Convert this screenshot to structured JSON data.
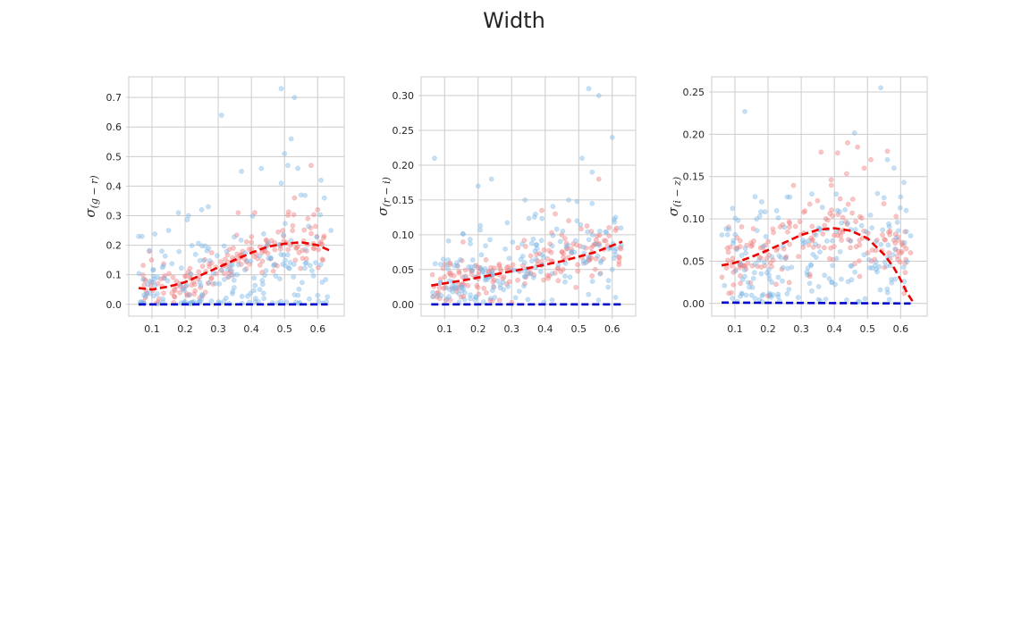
{
  "figure": {
    "title": "Width",
    "colors": {
      "red_points": "#f08080",
      "blue_points": "#7fb8e6",
      "red_curve": "#ee0000",
      "blue_curve": "#0000cc",
      "grid": "#cccccc",
      "frame": "#cccccc"
    }
  },
  "chart_data": [
    {
      "type": "scatter",
      "title": "",
      "ylabel": "σ",
      "ylabel_sub": "(g − r)",
      "xlim": [
        0.03,
        0.68
      ],
      "ylim": [
        -0.04,
        0.77
      ],
      "xticks": [
        0.1,
        0.2,
        0.3,
        0.4,
        0.5,
        0.6
      ],
      "yticks": [
        0.0,
        0.1,
        0.2,
        0.3,
        0.4,
        0.5,
        0.6,
        0.7
      ],
      "ytick_labels": [
        "0.0",
        "0.1",
        "0.2",
        "0.3",
        "0.4",
        "0.5",
        "0.6",
        "0.7"
      ],
      "grid": true,
      "series": [
        {
          "kind": "points",
          "color": "#f08080",
          "x_range": [
            0.06,
            0.62
          ],
          "trend": [
            [
              0.06,
              0.05
            ],
            [
              0.15,
              0.06
            ],
            [
              0.25,
              0.1
            ],
            [
              0.35,
              0.14
            ],
            [
              0.45,
              0.19
            ],
            [
              0.55,
              0.21
            ],
            [
              0.62,
              0.2
            ]
          ],
          "spread": 0.04,
          "count": 180,
          "seed": 11
        },
        {
          "kind": "points",
          "color": "#7fb8e6",
          "x_range": [
            0.06,
            0.63
          ],
          "trend": [
            [
              0.06,
              0.04
            ],
            [
              0.2,
              0.05
            ],
            [
              0.35,
              0.08
            ],
            [
              0.5,
              0.12
            ],
            [
              0.63,
              0.12
            ]
          ],
          "spread": 0.09,
          "count": 180,
          "seed": 23
        },
        {
          "kind": "points",
          "color": "#7fb8e6",
          "points": [
            [
              0.49,
              0.73
            ],
            [
              0.53,
              0.7
            ],
            [
              0.31,
              0.64
            ],
            [
              0.52,
              0.56
            ],
            [
              0.5,
              0.51
            ],
            [
              0.51,
              0.47
            ],
            [
              0.54,
              0.46
            ],
            [
              0.43,
              0.46
            ],
            [
              0.37,
              0.45
            ],
            [
              0.61,
              0.42
            ],
            [
              0.49,
              0.41
            ],
            [
              0.55,
              0.37
            ],
            [
              0.62,
              0.36
            ],
            [
              0.25,
              0.32
            ],
            [
              0.27,
              0.33
            ],
            [
              0.18,
              0.31
            ],
            [
              0.21,
              0.3
            ],
            [
              0.06,
              0.23
            ],
            [
              0.07,
              0.23
            ],
            [
              0.15,
              0.25
            ],
            [
              0.64,
              0.25
            ],
            [
              0.6,
              0.03
            ]
          ]
        },
        {
          "kind": "points",
          "color": "#f08080",
          "points": [
            [
              0.58,
              0.47
            ],
            [
              0.6,
              0.32
            ],
            [
              0.41,
              0.31
            ],
            [
              0.36,
              0.31
            ],
            [
              0.57,
              0.29
            ],
            [
              0.53,
              0.36
            ]
          ]
        },
        {
          "kind": "line",
          "style": "dashed",
          "color": "#ee0000",
          "x": [
            0.06,
            0.1,
            0.15,
            0.2,
            0.25,
            0.3,
            0.35,
            0.4,
            0.45,
            0.5,
            0.55,
            0.6,
            0.64
          ],
          "y": [
            0.055,
            0.05,
            0.06,
            0.075,
            0.1,
            0.125,
            0.15,
            0.175,
            0.195,
            0.205,
            0.21,
            0.2,
            0.18
          ]
        },
        {
          "kind": "line",
          "style": "dashed",
          "color": "#0000cc",
          "x": [
            0.06,
            0.63
          ],
          "y": [
            0.0,
            0.0
          ]
        }
      ]
    },
    {
      "type": "scatter",
      "title": "",
      "ylabel": "σ",
      "ylabel_sub": "(r − i)",
      "xlim": [
        0.03,
        0.67
      ],
      "ylim": [
        -0.017,
        0.327
      ],
      "xticks": [
        0.1,
        0.2,
        0.3,
        0.4,
        0.5,
        0.6
      ],
      "yticks": [
        0.0,
        0.05,
        0.1,
        0.15,
        0.2,
        0.25,
        0.3
      ],
      "ytick_labels": [
        "0.00",
        "0.05",
        "0.10",
        "0.15",
        "0.20",
        "0.25",
        "0.30"
      ],
      "grid": true,
      "series": [
        {
          "kind": "points",
          "color": "#f08080",
          "x_range": [
            0.06,
            0.63
          ],
          "trend": [
            [
              0.06,
              0.03
            ],
            [
              0.2,
              0.04
            ],
            [
              0.35,
              0.05
            ],
            [
              0.5,
              0.07
            ],
            [
              0.63,
              0.085
            ]
          ],
          "spread": 0.018,
          "count": 180,
          "seed": 37
        },
        {
          "kind": "points",
          "color": "#7fb8e6",
          "x_range": [
            0.06,
            0.63
          ],
          "trend": [
            [
              0.06,
              0.03
            ],
            [
              0.2,
              0.04
            ],
            [
              0.35,
              0.055
            ],
            [
              0.5,
              0.07
            ],
            [
              0.63,
              0.08
            ]
          ],
          "spread": 0.035,
          "count": 180,
          "seed": 53
        },
        {
          "kind": "points",
          "color": "#7fb8e6",
          "points": [
            [
              0.53,
              0.31
            ],
            [
              0.56,
              0.3
            ],
            [
              0.6,
              0.24
            ],
            [
              0.07,
              0.21
            ],
            [
              0.51,
              0.21
            ],
            [
              0.54,
              0.19
            ],
            [
              0.24,
              0.18
            ],
            [
              0.2,
              0.17
            ],
            [
              0.47,
              0.15
            ],
            [
              0.34,
              0.15
            ],
            [
              0.54,
              0.145
            ],
            [
              0.61,
              0.125
            ],
            [
              0.61,
              0.01
            ],
            [
              0.6,
              0.05
            ]
          ]
        },
        {
          "kind": "points",
          "color": "#f08080",
          "points": [
            [
              0.56,
              0.18
            ],
            [
              0.39,
              0.135
            ],
            [
              0.43,
              0.13
            ],
            [
              0.47,
              0.12
            ],
            [
              0.62,
              0.057
            ]
          ]
        },
        {
          "kind": "line",
          "style": "dashed",
          "color": "#ee0000",
          "x": [
            0.06,
            0.15,
            0.25,
            0.35,
            0.45,
            0.55,
            0.63
          ],
          "y": [
            0.027,
            0.034,
            0.043,
            0.052,
            0.062,
            0.075,
            0.09
          ]
        },
        {
          "kind": "line",
          "style": "dashed",
          "color": "#0000cc",
          "x": [
            0.06,
            0.63
          ],
          "y": [
            0.0,
            0.0
          ]
        }
      ]
    },
    {
      "type": "scatter",
      "title": "",
      "ylabel": "σ",
      "ylabel_sub": "(i − z)",
      "xlim": [
        0.03,
        0.68
      ],
      "ylim": [
        -0.015,
        0.268
      ],
      "xticks": [
        0.1,
        0.2,
        0.3,
        0.4,
        0.5,
        0.6
      ],
      "yticks": [
        0.0,
        0.05,
        0.1,
        0.15,
        0.2,
        0.25
      ],
      "ytick_labels": [
        "0.00",
        "0.05",
        "0.10",
        "0.15",
        "0.20",
        "0.25"
      ],
      "grid": true,
      "series": [
        {
          "kind": "points",
          "color": "#f08080",
          "x_range": [
            0.06,
            0.62
          ],
          "trend": [
            [
              0.06,
              0.05
            ],
            [
              0.15,
              0.055
            ],
            [
              0.25,
              0.07
            ],
            [
              0.35,
              0.085
            ],
            [
              0.45,
              0.085
            ],
            [
              0.55,
              0.07
            ],
            [
              0.62,
              0.05
            ]
          ],
          "spread": 0.025,
          "count": 180,
          "seed": 71
        },
        {
          "kind": "points",
          "color": "#7fb8e6",
          "x_range": [
            0.06,
            0.62
          ],
          "trend": [
            [
              0.06,
              0.04
            ],
            [
              0.2,
              0.05
            ],
            [
              0.35,
              0.06
            ],
            [
              0.5,
              0.06
            ],
            [
              0.62,
              0.05
            ]
          ],
          "spread": 0.04,
          "count": 180,
          "seed": 89
        },
        {
          "kind": "points",
          "color": "#7fb8e6",
          "points": [
            [
              0.54,
              0.255
            ],
            [
              0.13,
              0.227
            ],
            [
              0.56,
              0.17
            ],
            [
              0.58,
              0.16
            ],
            [
              0.61,
              0.143
            ],
            [
              0.6,
              0.126
            ],
            [
              0.53,
              0.13
            ],
            [
              0.55,
              0.125
            ],
            [
              0.63,
              0.08
            ],
            [
              0.59,
              0.096
            ]
          ]
        },
        {
          "kind": "points",
          "color": "#f08080",
          "points": [
            [
              0.44,
              0.19
            ],
            [
              0.47,
              0.185
            ],
            [
              0.56,
              0.18
            ],
            [
              0.41,
              0.178
            ],
            [
              0.36,
              0.179
            ],
            [
              0.51,
              0.17
            ],
            [
              0.49,
              0.16
            ],
            [
              0.63,
              0.06
            ]
          ]
        },
        {
          "kind": "line",
          "style": "dashed",
          "color": "#ee0000",
          "x": [
            0.06,
            0.1,
            0.15,
            0.2,
            0.25,
            0.3,
            0.35,
            0.4,
            0.45,
            0.5,
            0.55,
            0.58,
            0.6,
            0.62,
            0.64
          ],
          "y": [
            0.045,
            0.048,
            0.055,
            0.063,
            0.072,
            0.081,
            0.087,
            0.089,
            0.086,
            0.077,
            0.058,
            0.042,
            0.028,
            0.012,
            0.0
          ]
        },
        {
          "kind": "line",
          "style": "dashed",
          "color": "#0000cc",
          "x": [
            0.06,
            0.63
          ],
          "y": [
            0.001,
            0.0
          ]
        }
      ]
    }
  ]
}
